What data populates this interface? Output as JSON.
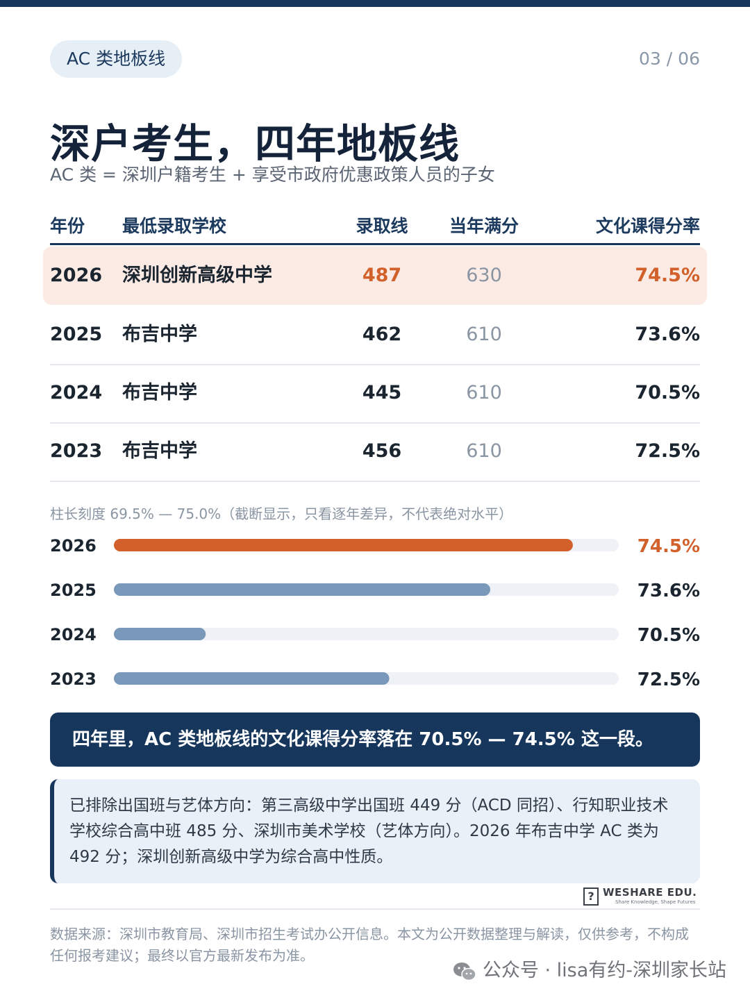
{
  "header": {
    "tag": "AC 类地板线",
    "pager": "03 / 06"
  },
  "title": "深户考生，四年地板线",
  "subtitle": "AC 类 = 深圳户籍考生 + 享受市政府优惠政策人员的子女",
  "table": {
    "headers": [
      "年份",
      "最低录取学校",
      "录取线",
      "当年满分",
      "文化课得分率"
    ],
    "rows": [
      {
        "year": "2026",
        "school": "深圳创新高级中学",
        "score": "487",
        "full": "630",
        "rate": "74.5%"
      },
      {
        "year": "2025",
        "school": "布吉中学",
        "score": "462",
        "full": "610",
        "rate": "73.6%"
      },
      {
        "year": "2024",
        "school": "布吉中学",
        "score": "445",
        "full": "610",
        "rate": "70.5%"
      },
      {
        "year": "2023",
        "school": "布吉中学",
        "score": "456",
        "full": "610",
        "rate": "72.5%"
      }
    ]
  },
  "scale_note": "柱长刻度 69.5% — 75.0%（截断显示，只看逐年差异，不代表绝对水平）",
  "chart_data": {
    "type": "bar",
    "orientation": "horizontal",
    "categories": [
      "2026",
      "2025",
      "2024",
      "2023"
    ],
    "values": [
      74.5,
      73.6,
      70.5,
      72.5
    ],
    "value_labels": [
      "74.5%",
      "73.6%",
      "70.5%",
      "72.5%"
    ],
    "xlim": [
      69.5,
      75.0
    ],
    "highlight_index": 0,
    "colors": {
      "highlight": "#d2602b",
      "normal": "#7a98b9",
      "track": "#eef1f6"
    }
  },
  "callout": "四年里，AC 类地板线的文化课得分率落在 70.5% — 74.5% 这一段。",
  "info_note": "已排除出国班与艺体方向：第三高级中学出国班 449 分（ACD 同招）、行知职业技术学校综合高中班 485 分、深圳市美术学校（艺体方向）。2026 年布吉中学 AC 类为 492 分；深圳创新高级中学为综合高中性质。",
  "logo": {
    "text": "WESHARE EDU.",
    "sub": "Share Knowledge, Shape Futures"
  },
  "source": "数据来源：深圳市教育局、深圳市招生考试办公开信息。本文为公开数据整理与解读，仅供参考，不构成任何报考建议；最终以官方最新发布为准。",
  "watermark": "公众号 · lisa有约-深圳家长站"
}
